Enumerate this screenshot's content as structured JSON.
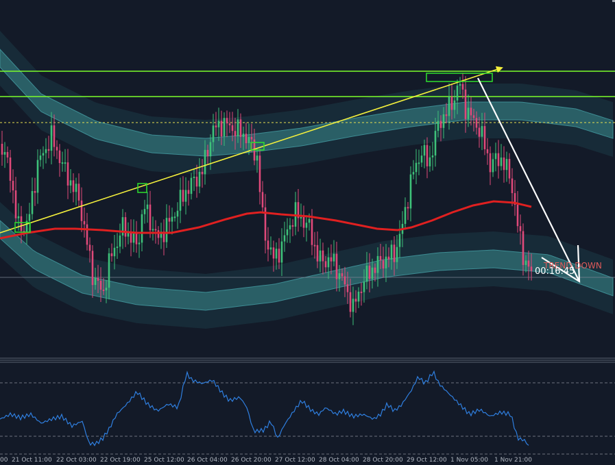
{
  "overlays": {
    "trend_label": "TREND DOWN",
    "countdown": "00:16:45"
  },
  "x_axis": {
    "labels": [
      "00",
      "21 Oct 11:00",
      "22 Oct 03:00",
      "22 Oct 19:00",
      "25 Oct 12:00",
      "26 Oct 04:00",
      "26 Oct 20:00",
      "27 Oct 12:00",
      "28 Oct 04:00",
      "28 Oct 20:00",
      "29 Oct 12:00",
      "1 Nov 05:00",
      "1 Nov 21:00"
    ]
  },
  "colors": {
    "background": "#131a28",
    "bull_candle": "#3ec27a",
    "bear_candle": "#e0497a",
    "moving_average": "#e02020",
    "band_fill": "#2a5f66",
    "band_edge": "#3a8a90",
    "horizontal_levels": "#7cff2a",
    "trend_line": "#f4f03c",
    "projection_arrow": "#ffffff",
    "oscillator": "#2f7fe0"
  },
  "icons": {
    "trend_arrow": "arrow-up-right-icon",
    "projection_arrow": "arrow-down-right-icon"
  }
}
